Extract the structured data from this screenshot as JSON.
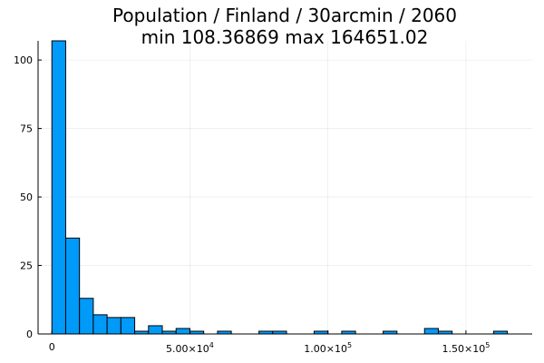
{
  "chart_data": {
    "type": "bar",
    "title": "Population / Finland / 30arcmin / 2060",
    "subtitle": "min 108.36869  max 164651.02",
    "xlabel": "",
    "ylabel": "",
    "bin_width": 5000,
    "bin_start": 0,
    "values": [
      107,
      35,
      13,
      7,
      6,
      6,
      1,
      3,
      1,
      2,
      1,
      0,
      1,
      0,
      0,
      1,
      1,
      0,
      0,
      1,
      0,
      1,
      0,
      0,
      1,
      0,
      0,
      2,
      1,
      0,
      0,
      0,
      1
    ],
    "xlim": [
      -5000,
      174000
    ],
    "ylim": [
      0,
      107
    ],
    "x_ticks": [
      {
        "value": 0,
        "label": "0",
        "exp": ""
      },
      {
        "value": 50000,
        "label": "5.00×10",
        "exp": "4"
      },
      {
        "value": 100000,
        "label": "1.00×10",
        "exp": "5"
      },
      {
        "value": 150000,
        "label": "1.50×10",
        "exp": "5"
      }
    ],
    "y_ticks": [
      {
        "value": 0,
        "label": "0"
      },
      {
        "value": 25,
        "label": "25"
      },
      {
        "value": 50,
        "label": "50"
      },
      {
        "value": 75,
        "label": "75"
      },
      {
        "value": 100,
        "label": "100"
      }
    ],
    "grid": true,
    "legend": "none",
    "bar_color": "#009af9"
  }
}
